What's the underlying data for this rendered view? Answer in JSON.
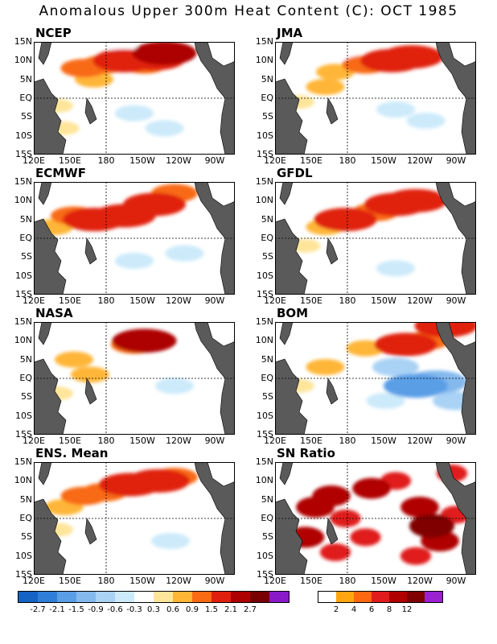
{
  "title": "Anomalous Upper 300m Heat Content (C): OCT 1985",
  "chart_data": {
    "type": "heatmap",
    "x_tick_labels": [
      "120E",
      "150E",
      "180",
      "150W",
      "120W",
      "90W"
    ],
    "y_tick_labels": [
      "15N",
      "10N",
      "5N",
      "EQ",
      "5S",
      "10S",
      "15S"
    ],
    "panels": [
      {
        "name": "NCEP",
        "blobs": [
          [
            0.25,
            8,
            0.9
          ],
          [
            0.35,
            9,
            0.9
          ],
          [
            0.45,
            10,
            1.5
          ],
          [
            0.6,
            10.5,
            1.5
          ],
          [
            0.65,
            12,
            2.1
          ],
          [
            0.55,
            9,
            0.9
          ],
          [
            0.3,
            5,
            0.6
          ],
          [
            0.12,
            -2,
            0.3
          ],
          [
            0.15,
            -8,
            0.3
          ],
          [
            0.5,
            -4,
            -0.6
          ],
          [
            0.65,
            -8,
            -0.6
          ],
          [
            0.8,
            -6,
            -0.3
          ],
          [
            0.9,
            0,
            -0.3
          ],
          [
            0.45,
            13,
            -0.3
          ]
        ]
      },
      {
        "name": "JMA",
        "blobs": [
          [
            0.3,
            7,
            0.6
          ],
          [
            0.45,
            9,
            0.9
          ],
          [
            0.58,
            10,
            1.5
          ],
          [
            0.68,
            11,
            1.5
          ],
          [
            0.25,
            3,
            0.6
          ],
          [
            0.12,
            -1,
            0.3
          ],
          [
            0.6,
            -3,
            -0.6
          ],
          [
            0.75,
            -6,
            -0.6
          ],
          [
            0.45,
            -8,
            -0.3
          ],
          [
            0.85,
            2,
            -0.3
          ],
          [
            0.35,
            12,
            -0.3
          ]
        ]
      },
      {
        "name": "ECMWF",
        "blobs": [
          [
            0.2,
            6,
            0.9
          ],
          [
            0.3,
            5,
            1.5
          ],
          [
            0.45,
            6,
            1.5
          ],
          [
            0.6,
            9,
            1.5
          ],
          [
            0.7,
            12,
            0.9
          ],
          [
            0.1,
            3,
            0.6
          ],
          [
            0.15,
            -6,
            -0.3
          ],
          [
            0.5,
            -6,
            -0.6
          ],
          [
            0.75,
            -4,
            -0.6
          ],
          [
            0.4,
            -10,
            -0.3
          ],
          [
            0.9,
            5,
            -0.3
          ]
        ]
      },
      {
        "name": "GFDL",
        "blobs": [
          [
            0.35,
            5,
            1.5
          ],
          [
            0.5,
            7,
            0.9
          ],
          [
            0.6,
            9,
            1.5
          ],
          [
            0.7,
            10,
            1.5
          ],
          [
            0.25,
            3,
            0.6
          ],
          [
            0.15,
            -2,
            0.3
          ],
          [
            0.45,
            -4,
            -0.3
          ],
          [
            0.6,
            -8,
            -0.6
          ],
          [
            0.78,
            -5,
            -0.3
          ],
          [
            0.9,
            12,
            -0.3
          ]
        ]
      },
      {
        "name": "NASA",
        "blobs": [
          [
            0.55,
            10,
            2.1
          ],
          [
            0.5,
            9,
            0.9
          ],
          [
            0.2,
            5,
            0.6
          ],
          [
            0.12,
            -4,
            0.3
          ],
          [
            0.28,
            1,
            0.6
          ],
          [
            0.45,
            -3,
            -0.3
          ],
          [
            0.7,
            -2,
            -0.6
          ],
          [
            0.8,
            6,
            -0.3
          ],
          [
            0.35,
            -9,
            -0.3
          ],
          [
            0.6,
            -9,
            -0.3
          ]
        ]
      },
      {
        "name": "BOM",
        "blobs": [
          [
            0.65,
            9,
            1.5
          ],
          [
            0.75,
            10,
            0.9
          ],
          [
            0.85,
            14,
            1.5
          ],
          [
            0.45,
            8,
            0.6
          ],
          [
            0.25,
            3,
            0.6
          ],
          [
            0.12,
            -2,
            0.3
          ],
          [
            0.7,
            -2,
            -2.1
          ],
          [
            0.8,
            -1,
            -1.5
          ],
          [
            0.6,
            3,
            -0.9
          ],
          [
            0.55,
            -6,
            -0.6
          ],
          [
            0.35,
            -8,
            -0.3
          ],
          [
            0.9,
            -6,
            -0.9
          ]
        ]
      },
      {
        "name": "ENS. Mean",
        "blobs": [
          [
            0.25,
            6,
            0.9
          ],
          [
            0.35,
            7,
            0.9
          ],
          [
            0.48,
            9,
            1.5
          ],
          [
            0.62,
            10,
            1.5
          ],
          [
            0.7,
            11,
            0.9
          ],
          [
            0.15,
            3,
            0.6
          ],
          [
            0.12,
            -3,
            0.3
          ],
          [
            0.5,
            -4,
            -0.3
          ],
          [
            0.68,
            -6,
            -0.6
          ],
          [
            0.82,
            -3,
            -0.3
          ],
          [
            0.4,
            -9,
            -0.3
          ]
        ]
      },
      {
        "name": "SN Ratio",
        "blobs": [
          [
            0.2,
            3,
            6
          ],
          [
            0.28,
            6,
            6
          ],
          [
            0.35,
            0,
            4
          ],
          [
            0.15,
            -5,
            6
          ],
          [
            0.3,
            -9,
            4
          ],
          [
            0.45,
            -5,
            4
          ],
          [
            0.48,
            8,
            6
          ],
          [
            0.6,
            10,
            4
          ],
          [
            0.72,
            3,
            6
          ],
          [
            0.78,
            -2,
            8
          ],
          [
            0.82,
            -6,
            6
          ],
          [
            0.7,
            -10,
            4
          ],
          [
            0.9,
            1,
            4
          ],
          [
            0.88,
            12,
            4
          ]
        ]
      }
    ],
    "colorbar_anomaly": {
      "labels": [
        "-2.7",
        "-2.1",
        "-1.5",
        "-0.9",
        "-0.6",
        "-0.3",
        "0.3",
        "0.6",
        "0.9",
        "1.5",
        "2.1",
        "2.7"
      ],
      "colors": [
        "#1563c4",
        "#2f7fd8",
        "#5a9ee6",
        "#84b9ee",
        "#a9d2f5",
        "#cceafa",
        "#ffffff",
        "#ffe59a",
        "#ffb637",
        "#f86a13",
        "#e0200e",
        "#ad0000",
        "#780000",
        "#8a1ac9"
      ]
    },
    "colorbar_sn": {
      "labels": [
        "2",
        "4",
        "6",
        "8",
        "12"
      ],
      "colors": [
        "#ffffff",
        "#ffa510",
        "#ff6810",
        "#e01c1c",
        "#b00000",
        "#800000",
        "#9a20d0"
      ]
    }
  }
}
